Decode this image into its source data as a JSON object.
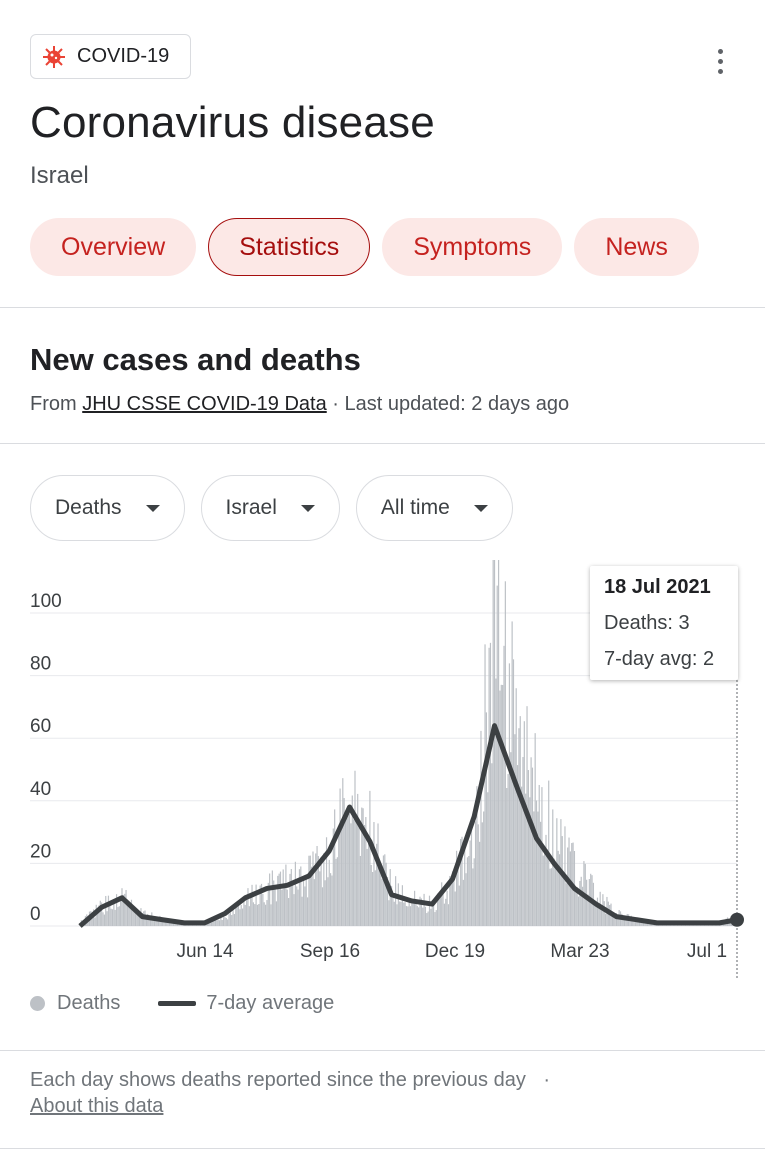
{
  "header": {
    "chip_label": "COVID-19",
    "chip_icon": "virus-icon",
    "more_icon": "more-vert-icon",
    "title": "Coronavirus disease",
    "subtitle": "Israel"
  },
  "tabs": [
    {
      "label": "Overview",
      "active": false
    },
    {
      "label": "Statistics",
      "active": true
    },
    {
      "label": "Symptoms",
      "active": false
    },
    {
      "label": "News",
      "active": false
    }
  ],
  "section": {
    "title": "New cases and deaths",
    "source_prefix": "From ",
    "source_link": "JHU CSSE COVID-19 Data",
    "source_suffix": " · Last updated: 2 days ago"
  },
  "filters": [
    {
      "label": "Deaths"
    },
    {
      "label": "Israel"
    },
    {
      "label": "All time"
    }
  ],
  "tooltip": {
    "date": "18 Jul 2021",
    "deaths": "Deaths: 3",
    "avg": "7-day avg: 2"
  },
  "legend": {
    "deaths": "Deaths",
    "avg": "7-day average"
  },
  "footnote": {
    "text": "Each day shows deaths reported since the previous day",
    "separator": "·",
    "link": "About this data"
  },
  "colors": {
    "accent": "#c5221f",
    "tab_bg": "#fce8e6",
    "bar": "#bdc1c6",
    "line": "#3c4043"
  },
  "chart_data": {
    "type": "bar",
    "ylim": [
      0,
      100
    ],
    "yticks": [
      0,
      20,
      40,
      60,
      80,
      100
    ],
    "xtick_labels": [
      "Jun 14",
      "Sep 16",
      "Dec 19",
      "Mar 23",
      "Jul 1"
    ],
    "series": [
      {
        "name": "Deaths",
        "kind": "bar",
        "x": [
          "2020-03-20",
          "2020-04-05",
          "2020-04-20",
          "2020-05-05",
          "2020-05-20",
          "2020-06-05",
          "2020-06-20",
          "2020-07-05",
          "2020-07-20",
          "2020-08-05",
          "2020-08-20",
          "2020-09-05",
          "2020-09-20",
          "2020-10-05",
          "2020-10-20",
          "2020-11-05",
          "2020-11-20",
          "2020-12-05",
          "2020-12-20",
          "2021-01-05",
          "2021-01-20",
          "2021-02-05",
          "2021-02-20",
          "2021-03-05",
          "2021-03-20",
          "2021-04-05",
          "2021-04-20",
          "2021-05-05",
          "2021-05-20",
          "2021-06-05",
          "2021-06-20",
          "2021-07-05",
          "2021-07-18"
        ],
        "values": [
          1,
          6,
          10,
          4,
          2,
          1,
          1,
          3,
          8,
          12,
          14,
          16,
          22,
          40,
          30,
          12,
          8,
          7,
          14,
          28,
          100,
          60,
          42,
          30,
          18,
          10,
          4,
          2,
          1,
          1,
          1,
          1,
          3
        ]
      },
      {
        "name": "7-day average",
        "kind": "line",
        "x": [
          "2020-03-20",
          "2020-04-05",
          "2020-04-20",
          "2020-05-05",
          "2020-05-20",
          "2020-06-05",
          "2020-06-20",
          "2020-07-05",
          "2020-07-20",
          "2020-08-05",
          "2020-08-20",
          "2020-09-05",
          "2020-09-20",
          "2020-10-05",
          "2020-10-20",
          "2020-11-05",
          "2020-11-20",
          "2020-12-05",
          "2020-12-20",
          "2021-01-05",
          "2021-01-20",
          "2021-02-05",
          "2021-02-20",
          "2021-03-05",
          "2021-03-20",
          "2021-04-05",
          "2021-04-20",
          "2021-05-05",
          "2021-05-20",
          "2021-06-05",
          "2021-06-20",
          "2021-07-05",
          "2021-07-18"
        ],
        "values": [
          0,
          6,
          9,
          3,
          2,
          1,
          1,
          4,
          9,
          12,
          13,
          16,
          24,
          38,
          27,
          10,
          8,
          7,
          15,
          35,
          64,
          45,
          28,
          20,
          12,
          7,
          3,
          2,
          1,
          1,
          1,
          1,
          2
        ]
      }
    ],
    "highlight": {
      "date": "2021-07-18",
      "value": 2
    }
  }
}
